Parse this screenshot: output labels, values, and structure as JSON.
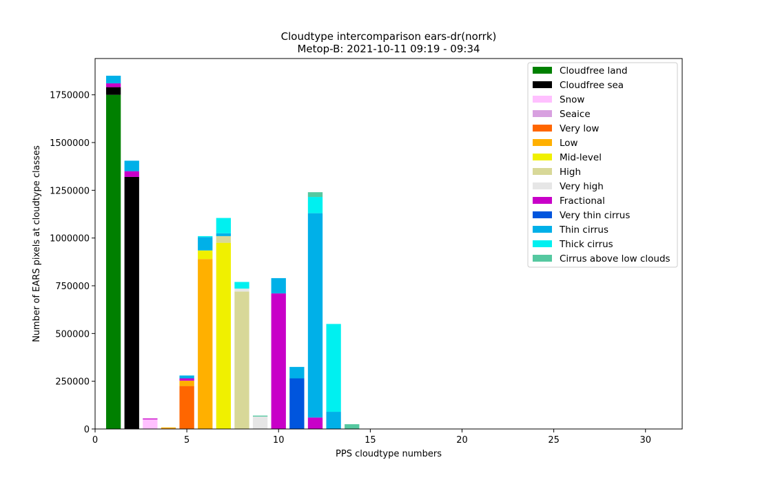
{
  "chart_data": {
    "type": "bar",
    "stacked": true,
    "title": "Cloudtype intercomparison ears-dr(norrk)",
    "subtitle": "Metop-B: 2021-10-11 09:19 - 09:34",
    "xlabel": "PPS cloudtype numbers",
    "ylabel": "Number of EARS pixels at cloudtype classes",
    "xlim": [
      0,
      32
    ],
    "ylim": [
      0,
      1940000
    ],
    "xticks": [
      0,
      5,
      10,
      15,
      20,
      25,
      30
    ],
    "yticks": [
      0,
      250000,
      500000,
      750000,
      1000000,
      1250000,
      1500000,
      1750000
    ],
    "legend_position": "top-right",
    "grid": false,
    "x": [
      1,
      2,
      3,
      4,
      5,
      6,
      7,
      8,
      9,
      10,
      11,
      12,
      13,
      14
    ],
    "series": [
      {
        "name": "Cloudfree land",
        "color": "#008000",
        "values": [
          1750000,
          0,
          0,
          0,
          0,
          0,
          0,
          0,
          0,
          0,
          0,
          0,
          0,
          0
        ]
      },
      {
        "name": "Cloudfree sea",
        "color": "#000000",
        "values": [
          40000,
          1320000,
          0,
          0,
          0,
          0,
          0,
          0,
          0,
          0,
          0,
          0,
          0,
          0
        ]
      },
      {
        "name": "Snow",
        "color": "#ffc0ff",
        "values": [
          0,
          0,
          50000,
          0,
          0,
          0,
          0,
          0,
          0,
          0,
          0,
          0,
          0,
          0
        ]
      },
      {
        "name": "Seaice",
        "color": "#d8a0e0",
        "values": [
          0,
          0,
          0,
          0,
          0,
          0,
          0,
          0,
          0,
          0,
          0,
          0,
          0,
          0
        ]
      },
      {
        "name": "Very low",
        "color": "#ff6600",
        "values": [
          0,
          0,
          0,
          3000,
          225000,
          0,
          0,
          0,
          0,
          0,
          0,
          0,
          0,
          0
        ]
      },
      {
        "name": "Low",
        "color": "#ffb000",
        "values": [
          0,
          0,
          0,
          5000,
          28000,
          890000,
          0,
          0,
          0,
          0,
          0,
          0,
          0,
          0
        ]
      },
      {
        "name": "Mid-level",
        "color": "#f0f000",
        "values": [
          0,
          0,
          0,
          0,
          0,
          45000,
          975000,
          0,
          0,
          0,
          0,
          0,
          0,
          0
        ]
      },
      {
        "name": "High",
        "color": "#d8d898",
        "values": [
          0,
          0,
          0,
          0,
          0,
          0,
          35000,
          720000,
          0,
          0,
          0,
          0,
          0,
          0
        ]
      },
      {
        "name": "Very high",
        "color": "#e6e6e6",
        "values": [
          0,
          0,
          0,
          0,
          0,
          0,
          0,
          15000,
          65000,
          0,
          0,
          0,
          0,
          0
        ]
      },
      {
        "name": "Fractional",
        "color": "#c800c8",
        "values": [
          20000,
          30000,
          5000,
          0,
          12000,
          0,
          0,
          0,
          0,
          710000,
          0,
          60000,
          0,
          0
        ]
      },
      {
        "name": "Very thin cirrus",
        "color": "#0055dd",
        "values": [
          0,
          0,
          0,
          0,
          0,
          0,
          0,
          0,
          0,
          0,
          265000,
          0,
          0,
          0
        ]
      },
      {
        "name": "Thin cirrus",
        "color": "#00b0e8",
        "values": [
          40000,
          55000,
          0,
          0,
          15000,
          70000,
          15000,
          0,
          0,
          80000,
          60000,
          1070000,
          90000,
          0
        ]
      },
      {
        "name": "Thick cirrus",
        "color": "#00f0f0",
        "values": [
          0,
          0,
          0,
          0,
          0,
          5000,
          80000,
          35000,
          0,
          0,
          0,
          85000,
          460000,
          0
        ]
      },
      {
        "name": "Cirrus above low clouds",
        "color": "#55c8a0",
        "values": [
          0,
          0,
          0,
          0,
          0,
          0,
          0,
          0,
          5000,
          0,
          0,
          25000,
          0,
          25000
        ]
      }
    ]
  }
}
